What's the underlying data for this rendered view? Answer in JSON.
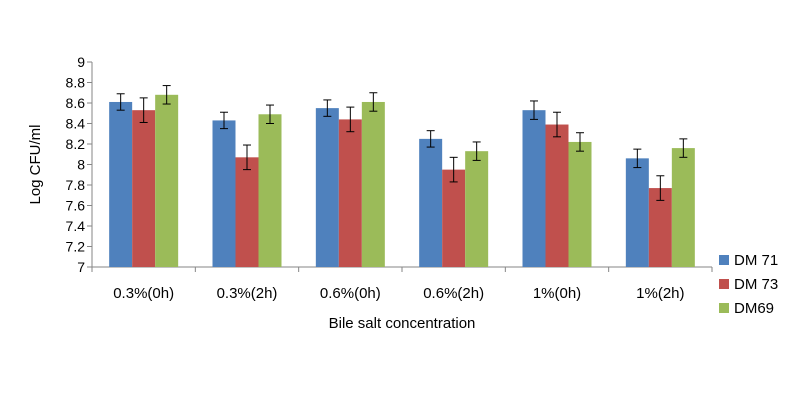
{
  "chart_data": {
    "type": "bar",
    "xlabel": "Bile salt concentration",
    "ylabel": "Log CFU/ml",
    "ylim": [
      7,
      9
    ],
    "yticks": [
      "7",
      "7.2",
      "7.4",
      "7.6",
      "7.8",
      "8",
      "8.2",
      "8.4",
      "8.6",
      "8.8",
      "9"
    ],
    "categories": [
      "0.3%(0h)",
      "0.3%(2h)",
      "0.6%(0h)",
      "0.6%(2h)",
      "1%(0h)",
      "1%(2h)"
    ],
    "series": [
      {
        "name": "DM 71",
        "color": "#4F81BD",
        "values": [
          8.61,
          8.43,
          8.55,
          8.25,
          8.53,
          8.06
        ],
        "errors": [
          0.08,
          0.08,
          0.08,
          0.08,
          0.09,
          0.09
        ]
      },
      {
        "name": "DM 73",
        "color": "#C0504D",
        "values": [
          8.53,
          8.07,
          8.44,
          7.95,
          8.39,
          7.77
        ],
        "errors": [
          0.12,
          0.12,
          0.12,
          0.12,
          0.12,
          0.12
        ]
      },
      {
        "name": "DM69",
        "color": "#9BBB59",
        "values": [
          8.68,
          8.49,
          8.61,
          8.13,
          8.22,
          8.16
        ],
        "errors": [
          0.09,
          0.09,
          0.09,
          0.09,
          0.09,
          0.09
        ]
      }
    ],
    "grid": false,
    "legend": "right"
  }
}
